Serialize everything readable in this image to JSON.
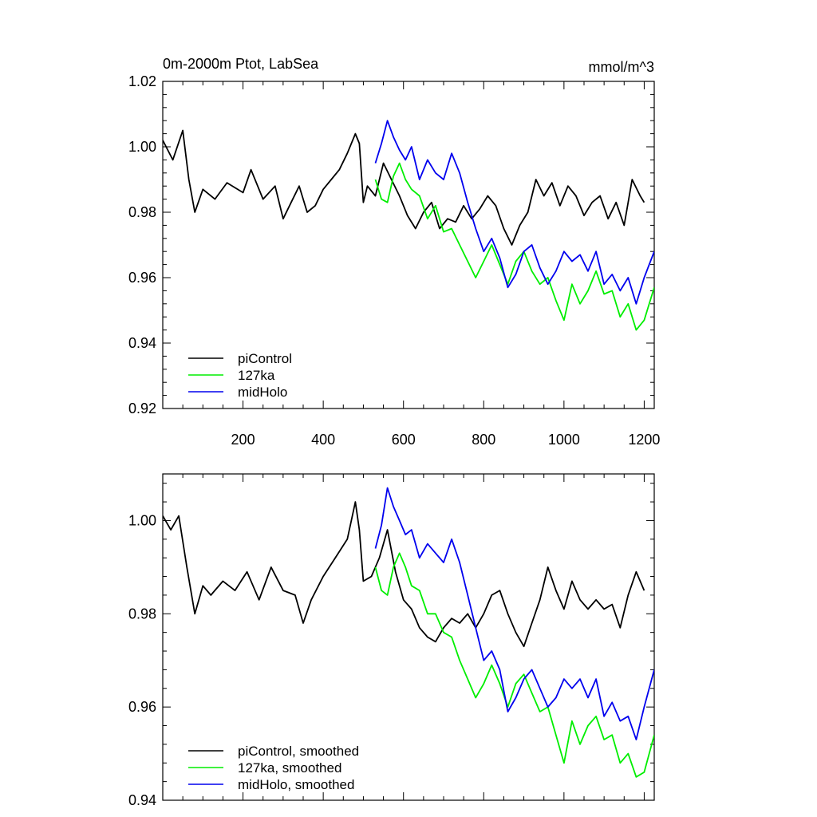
{
  "chart_data": [
    {
      "type": "line",
      "title": "0m-2000m Ptot, LabSea",
      "units": "mmol/m^3",
      "xlabel": "",
      "ylabel": "",
      "xlim": [
        0,
        1225
      ],
      "ylim": [
        0.92,
        1.02
      ],
      "xticks": [
        200,
        400,
        600,
        800,
        1000,
        1200
      ],
      "xtick_labels": [
        "200",
        "400",
        "600",
        "800",
        "1000",
        "1200"
      ],
      "yticks": [
        0.92,
        0.94,
        0.96,
        0.98,
        1.0,
        1.02
      ],
      "ytick_labels": [
        "0.92",
        "0.94",
        "0.96",
        "0.98",
        "1.00",
        "1.02"
      ],
      "legend_position": "bottom-left",
      "series": [
        {
          "name": "piControl",
          "color": "#000000",
          "x": [
            0,
            25,
            50,
            65,
            80,
            100,
            130,
            160,
            200,
            220,
            250,
            280,
            300,
            320,
            340,
            360,
            380,
            400,
            420,
            440,
            460,
            480,
            490,
            500,
            510,
            530,
            550,
            570,
            590,
            610,
            630,
            650,
            670,
            690,
            710,
            730,
            750,
            770,
            790,
            810,
            830,
            850,
            870,
            890,
            910,
            930,
            950,
            970,
            990,
            1010,
            1030,
            1050,
            1070,
            1090,
            1110,
            1130,
            1150,
            1170,
            1190,
            1200
          ],
          "values": [
            1.002,
            0.996,
            1.005,
            0.99,
            0.98,
            0.987,
            0.984,
            0.989,
            0.986,
            0.993,
            0.984,
            0.988,
            0.978,
            0.983,
            0.988,
            0.98,
            0.982,
            0.987,
            0.99,
            0.993,
            0.998,
            1.004,
            1.001,
            0.983,
            0.988,
            0.985,
            0.995,
            0.99,
            0.985,
            0.979,
            0.975,
            0.98,
            0.983,
            0.975,
            0.978,
            0.977,
            0.982,
            0.978,
            0.981,
            0.985,
            0.982,
            0.975,
            0.97,
            0.976,
            0.98,
            0.99,
            0.985,
            0.989,
            0.982,
            0.988,
            0.985,
            0.979,
            0.983,
            0.985,
            0.978,
            0.983,
            0.976,
            0.99,
            0.985,
            0.983
          ]
        },
        {
          "name": "127ka",
          "color": "#00ee00",
          "x": [
            530,
            545,
            560,
            575,
            590,
            605,
            620,
            640,
            660,
            680,
            700,
            720,
            740,
            760,
            780,
            800,
            820,
            840,
            860,
            880,
            900,
            920,
            940,
            960,
            980,
            1000,
            1020,
            1040,
            1060,
            1080,
            1100,
            1120,
            1140,
            1160,
            1180,
            1200,
            1225
          ],
          "values": [
            0.99,
            0.984,
            0.983,
            0.991,
            0.995,
            0.99,
            0.987,
            0.985,
            0.978,
            0.982,
            0.974,
            0.975,
            0.97,
            0.965,
            0.96,
            0.965,
            0.97,
            0.964,
            0.958,
            0.965,
            0.968,
            0.962,
            0.958,
            0.96,
            0.953,
            0.947,
            0.958,
            0.952,
            0.956,
            0.962,
            0.955,
            0.956,
            0.948,
            0.952,
            0.944,
            0.947,
            0.957
          ]
        },
        {
          "name": "midHolo",
          "color": "#0000ee",
          "x": [
            530,
            545,
            560,
            575,
            590,
            605,
            620,
            640,
            660,
            680,
            700,
            720,
            740,
            760,
            780,
            800,
            820,
            840,
            860,
            880,
            900,
            920,
            940,
            960,
            980,
            1000,
            1020,
            1040,
            1060,
            1080,
            1100,
            1120,
            1140,
            1160,
            1180,
            1200,
            1225
          ],
          "values": [
            0.995,
            1.001,
            1.008,
            1.003,
            0.999,
            0.996,
            1.0,
            0.99,
            0.996,
            0.992,
            0.99,
            0.998,
            0.992,
            0.983,
            0.975,
            0.968,
            0.972,
            0.966,
            0.957,
            0.961,
            0.968,
            0.97,
            0.963,
            0.958,
            0.962,
            0.968,
            0.965,
            0.967,
            0.962,
            0.968,
            0.958,
            0.961,
            0.956,
            0.96,
            0.952,
            0.96,
            0.968
          ]
        }
      ]
    },
    {
      "type": "line",
      "title": "",
      "xlabel": "",
      "ylabel": "",
      "xlim": [
        0,
        1225
      ],
      "ylim": [
        0.94,
        1.01
      ],
      "xticks": [
        200,
        400,
        600,
        800,
        1000,
        1200
      ],
      "xtick_labels": [],
      "yticks": [
        0.94,
        0.96,
        0.98,
        1.0
      ],
      "ytick_labels": [
        "0.94",
        "0.96",
        "0.98",
        "1.00"
      ],
      "legend_position": "bottom-left",
      "series": [
        {
          "name": "piControl, smoothed",
          "color": "#000000",
          "x": [
            0,
            20,
            40,
            60,
            80,
            100,
            120,
            150,
            180,
            210,
            240,
            270,
            300,
            330,
            350,
            370,
            400,
            430,
            460,
            480,
            490,
            500,
            520,
            540,
            560,
            580,
            600,
            620,
            640,
            660,
            680,
            700,
            720,
            740,
            760,
            780,
            800,
            820,
            840,
            860,
            880,
            900,
            920,
            940,
            960,
            980,
            1000,
            1020,
            1040,
            1060,
            1080,
            1100,
            1120,
            1140,
            1160,
            1180,
            1200
          ],
          "values": [
            1.001,
            0.998,
            1.001,
            0.99,
            0.98,
            0.986,
            0.984,
            0.987,
            0.985,
            0.989,
            0.983,
            0.99,
            0.985,
            0.984,
            0.978,
            0.983,
            0.988,
            0.992,
            0.996,
            1.004,
            0.998,
            0.987,
            0.988,
            0.992,
            0.998,
            0.989,
            0.983,
            0.981,
            0.977,
            0.975,
            0.974,
            0.977,
            0.979,
            0.978,
            0.98,
            0.977,
            0.98,
            0.984,
            0.985,
            0.98,
            0.976,
            0.973,
            0.978,
            0.983,
            0.99,
            0.985,
            0.981,
            0.987,
            0.983,
            0.981,
            0.983,
            0.981,
            0.982,
            0.977,
            0.984,
            0.989,
            0.985
          ]
        },
        {
          "name": "127ka, smoothed",
          "color": "#00ee00",
          "x": [
            530,
            545,
            560,
            575,
            590,
            605,
            620,
            640,
            660,
            680,
            700,
            720,
            740,
            760,
            780,
            800,
            820,
            840,
            860,
            880,
            900,
            920,
            940,
            960,
            980,
            1000,
            1020,
            1040,
            1060,
            1080,
            1100,
            1120,
            1140,
            1160,
            1180,
            1200,
            1225
          ],
          "values": [
            0.99,
            0.985,
            0.984,
            0.99,
            0.993,
            0.99,
            0.986,
            0.985,
            0.98,
            0.98,
            0.976,
            0.975,
            0.97,
            0.966,
            0.962,
            0.965,
            0.969,
            0.965,
            0.96,
            0.965,
            0.967,
            0.963,
            0.959,
            0.96,
            0.954,
            0.948,
            0.957,
            0.952,
            0.956,
            0.958,
            0.953,
            0.954,
            0.948,
            0.95,
            0.945,
            0.946,
            0.954
          ]
        },
        {
          "name": "midHolo, smoothed",
          "color": "#0000ee",
          "x": [
            530,
            545,
            560,
            575,
            590,
            605,
            620,
            640,
            660,
            680,
            700,
            720,
            740,
            760,
            780,
            800,
            820,
            840,
            860,
            880,
            900,
            920,
            940,
            960,
            980,
            1000,
            1020,
            1040,
            1060,
            1080,
            1100,
            1120,
            1140,
            1160,
            1180,
            1200,
            1225
          ],
          "values": [
            0.994,
            0.999,
            1.007,
            1.003,
            1.0,
            0.997,
            0.998,
            0.992,
            0.995,
            0.993,
            0.991,
            0.996,
            0.991,
            0.984,
            0.977,
            0.97,
            0.972,
            0.968,
            0.959,
            0.962,
            0.966,
            0.968,
            0.964,
            0.96,
            0.962,
            0.966,
            0.964,
            0.966,
            0.962,
            0.966,
            0.958,
            0.961,
            0.957,
            0.958,
            0.953,
            0.96,
            0.968
          ]
        }
      ]
    }
  ]
}
